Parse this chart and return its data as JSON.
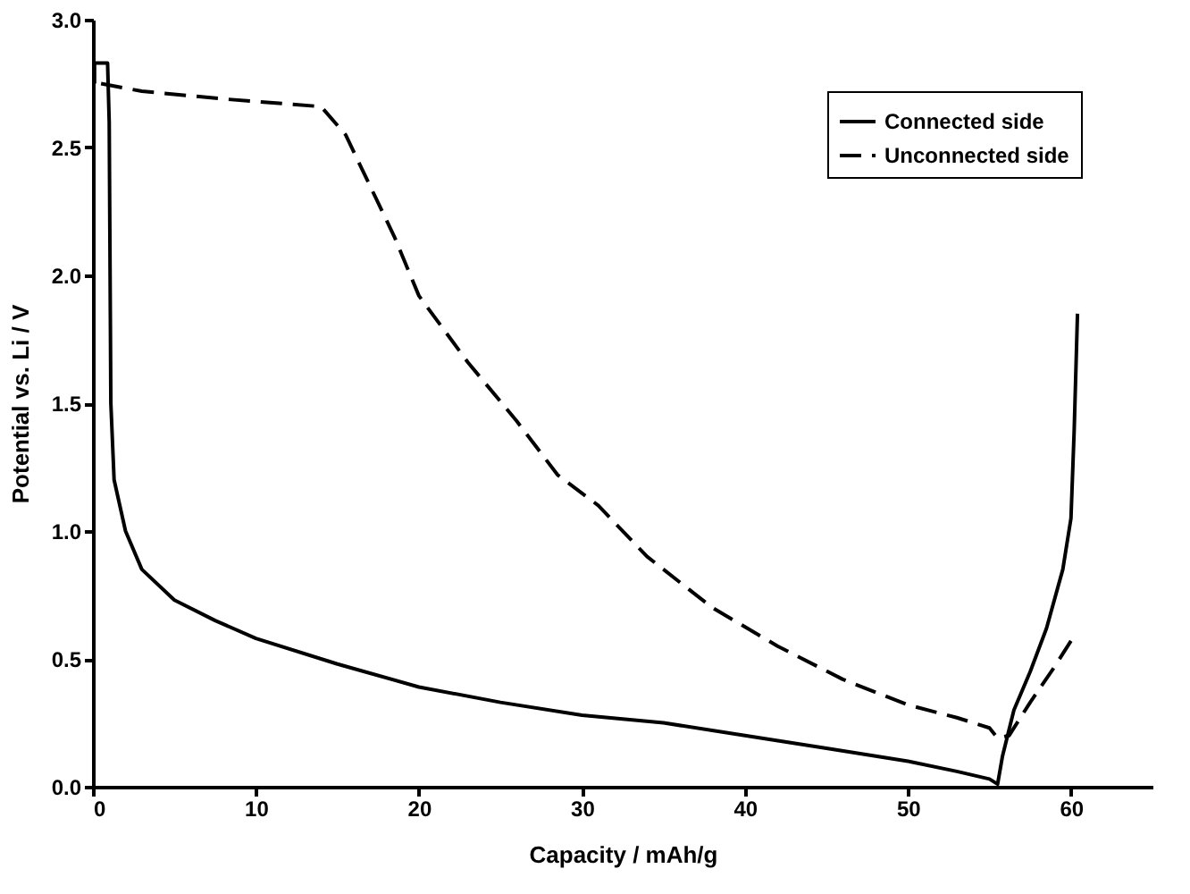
{
  "chart_data": {
    "type": "line",
    "xlabel": "Capacity / mAh/g",
    "ylabel": "Potential vs. Li / V",
    "xlim": [
      0,
      65
    ],
    "xticks": [
      0,
      10,
      20,
      30,
      40,
      50,
      60
    ],
    "ylim": [
      0,
      3.0
    ],
    "yticks": [
      {
        "value": 0,
        "label": "0.0"
      },
      0.5,
      {
        "value": 1,
        "label": "1.0"
      },
      1.5,
      {
        "value": 2,
        "label": "2.0"
      },
      2.5,
      {
        "value": 3,
        "label": "3.0"
      }
    ],
    "grid": false,
    "legend": "top right",
    "marker": "none",
    "series": [
      {
        "name": "Connected side",
        "color": "#000000",
        "line_style": "solid",
        "x": [
          0.1,
          0.1,
          0.9,
          1.0,
          1.1,
          1.3,
          2,
          3,
          5,
          7.5,
          10,
          15,
          20,
          25,
          30,
          35,
          40,
          45,
          50,
          53,
          55,
          55.5,
          55.8,
          56.5,
          57.5,
          58.5,
          59.5,
          60,
          60.2,
          60.4
        ],
        "values": [
          2.75,
          2.83,
          2.83,
          2.6,
          1.5,
          1.2,
          1.0,
          0.85,
          0.73,
          0.65,
          0.58,
          0.48,
          0.39,
          0.33,
          0.28,
          0.25,
          0.2,
          0.15,
          0.1,
          0.06,
          0.03,
          0.01,
          0.12,
          0.3,
          0.45,
          0.62,
          0.85,
          1.05,
          1.4,
          1.85
        ]
      },
      {
        "name": "Unconnected side",
        "color": "#000000",
        "line_style": "dashed",
        "x": [
          0.5,
          3,
          8,
          14,
          15.5,
          17,
          18.5,
          20,
          23,
          26,
          28.5,
          31,
          34,
          38,
          42,
          46,
          50,
          53,
          55,
          55.5,
          56.2,
          57.5,
          59,
          60.3
        ],
        "values": [
          2.75,
          2.72,
          2.69,
          2.66,
          2.55,
          2.35,
          2.15,
          1.92,
          1.66,
          1.43,
          1.22,
          1.1,
          0.9,
          0.7,
          0.55,
          0.42,
          0.32,
          0.27,
          0.23,
          0.19,
          0.2,
          0.33,
          0.47,
          0.6
        ]
      }
    ]
  }
}
